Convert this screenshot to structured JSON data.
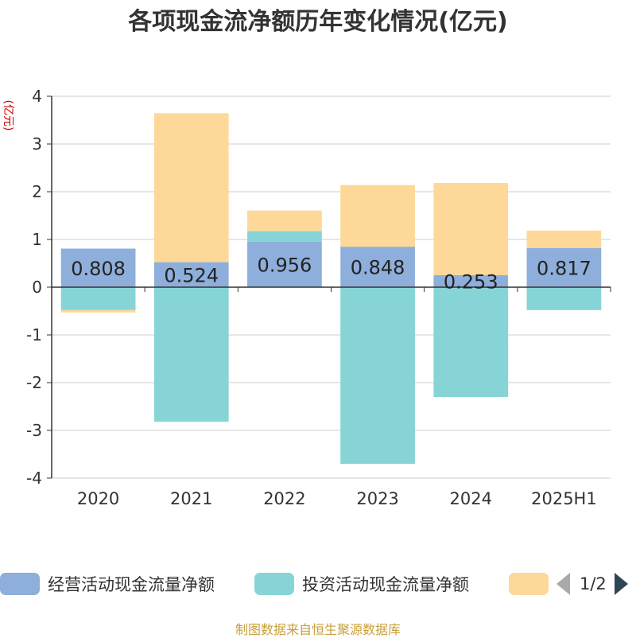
{
  "title": "各项现金流净额历年变化情况(亿元)",
  "source_note": "制图数据来自恒生聚源数据库",
  "legend_pager": "1/2",
  "colors": {
    "operating": "#8eaedb",
    "investing": "#86d4d6",
    "financing": "#fed899",
    "axis": "#333333",
    "grid": "#cccccc",
    "ylabel": "#cc0000"
  },
  "chart_data": {
    "type": "bar",
    "stacked": true,
    "title": "各项现金流净额历年变化情况(亿元)",
    "ylabel": "(亿元)",
    "xlabel": "",
    "ylim": [
      -4,
      4
    ],
    "yticks": [
      4,
      3,
      2,
      1,
      0,
      -1,
      -2,
      -3,
      -4
    ],
    "grid": true,
    "legend_position": "bottom",
    "categories": [
      "2020",
      "2021",
      "2022",
      "2023",
      "2024",
      "2025H1"
    ],
    "series": [
      {
        "name": "经营活动现金流量净额",
        "values": [
          0.808,
          0.524,
          0.956,
          0.848,
          0.253,
          0.817
        ],
        "labels": [
          "0.808",
          "0.524",
          "0.956",
          "0.848",
          "0.253",
          "0.817"
        ]
      },
      {
        "name": "投资活动现金流量净额",
        "values": [
          -0.48,
          -2.82,
          0.22,
          -3.7,
          -2.3,
          -0.48
        ]
      },
      {
        "name": "",
        "values": [
          -0.05,
          3.12,
          0.43,
          1.29,
          1.93,
          0.37
        ]
      }
    ]
  }
}
